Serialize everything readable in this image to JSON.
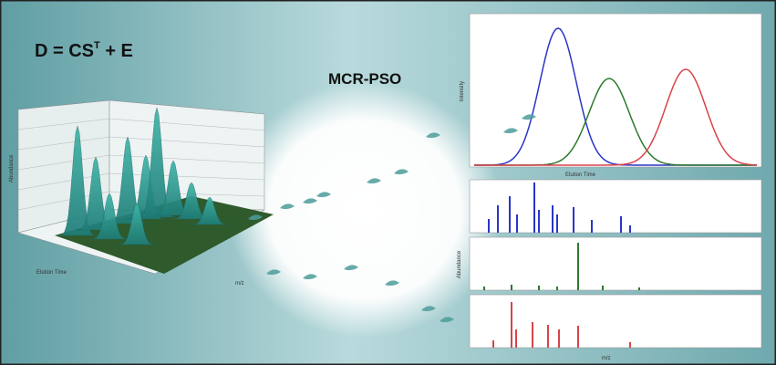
{
  "formula": {
    "lhs": "D = CS",
    "superscript": "T",
    "rhs": " + E"
  },
  "method": "MCR-PSO",
  "surface_plot": {
    "x_label": "Elution Time",
    "y_label": "Abundance",
    "z_label": "m/z"
  },
  "profiles_plot": {
    "x_label": "Elution Time",
    "y_label": "Intensity"
  },
  "spectra_plot": {
    "x_label": "m/z",
    "y_label": "Abundance"
  }
}
